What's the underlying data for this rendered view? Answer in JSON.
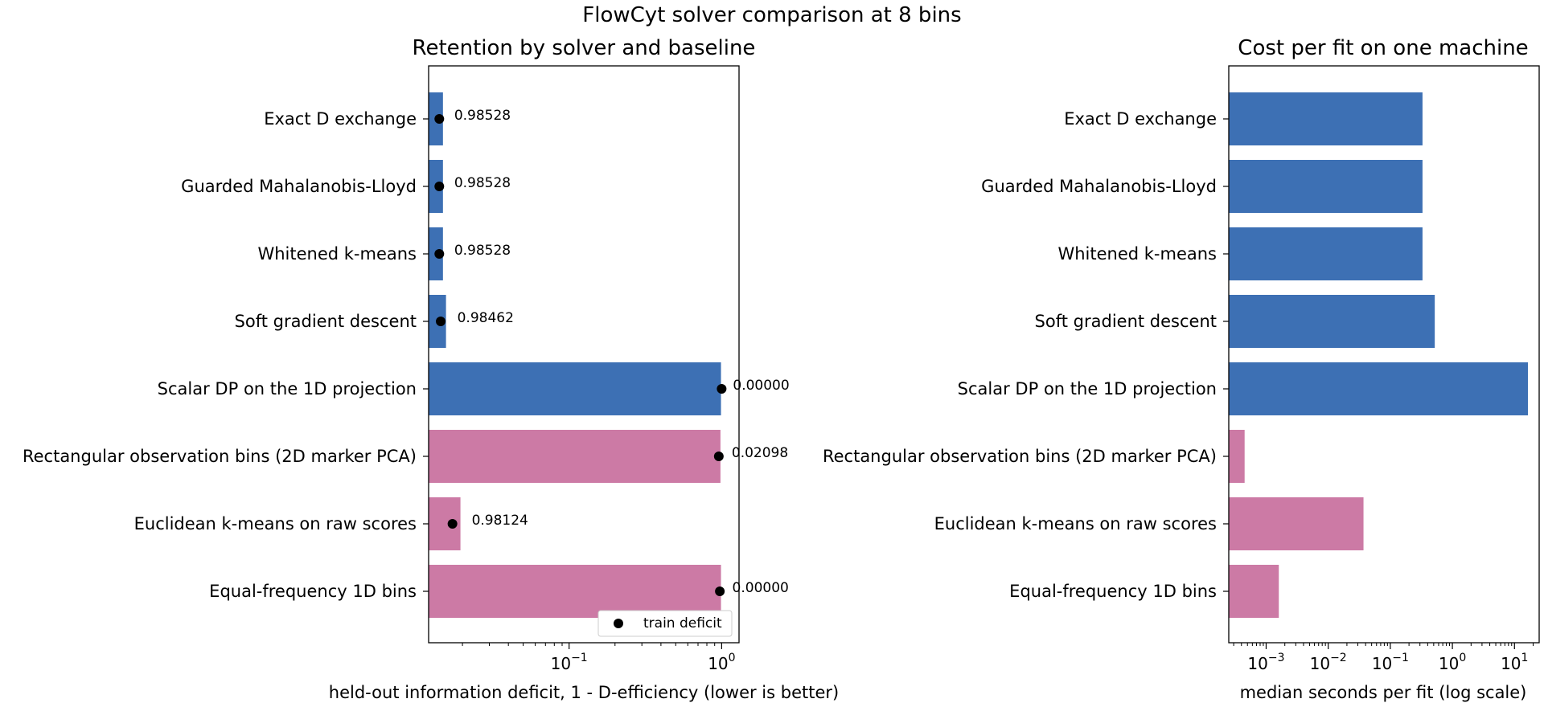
{
  "figure": {
    "suptitle": "FlowCyt solver comparison at 8 bins"
  },
  "colors": {
    "solver": "#3d70b4",
    "baseline": "#cc7aa5",
    "marker": "#000000"
  },
  "chart_data": [
    {
      "type": "bar",
      "orientation": "horizontal",
      "title": "Retention by solver and baseline",
      "xlabel": "held-out information deficit, 1 - D-efficiency (lower is better)",
      "ylabel": "",
      "xscale": "log",
      "xlim": [
        0.012,
        1.3
      ],
      "xticks": [
        {
          "value": 0.1,
          "base": "10",
          "exp": "−1"
        },
        {
          "value": 1,
          "base": "10",
          "exp": "0"
        }
      ],
      "categories": [
        "Exact D exchange",
        "Guarded Mahalanobis-Lloyd",
        "Whitened k-means",
        "Soft gradient descent",
        "Scalar DP on the 1D projection",
        "Rectangular observation bins (2D marker PCA)",
        "Euclidean k-means on raw scores",
        "Equal-frequency 1D bins"
      ],
      "groups": [
        "solver",
        "solver",
        "solver",
        "solver",
        "solver",
        "baseline",
        "baseline",
        "baseline"
      ],
      "values": [
        0.0149,
        0.0149,
        0.0149,
        0.0156,
        0.99,
        0.982,
        0.0194,
        0.99
      ],
      "train_deficit": [
        0.0141,
        0.0141,
        0.0141,
        0.0144,
        1.0,
        0.958,
        0.0172,
        0.973
      ],
      "data_labels": [
        "0.98528",
        "0.98528",
        "0.98528",
        "0.98462",
        "0.00000",
        "0.02098",
        "0.98124",
        "0.00000"
      ],
      "legend": {
        "label": "train deficit",
        "position": "lower right"
      }
    },
    {
      "type": "bar",
      "orientation": "horizontal",
      "title": "Cost per fit on one machine",
      "xlabel": "median seconds per fit (log scale)",
      "ylabel": "",
      "xscale": "log",
      "xlim": [
        0.00025,
        25
      ],
      "xticks": [
        {
          "value": 0.001,
          "base": "10",
          "exp": "−3"
        },
        {
          "value": 0.01,
          "base": "10",
          "exp": "−2"
        },
        {
          "value": 0.1,
          "base": "10",
          "exp": "−1"
        },
        {
          "value": 1,
          "base": "10",
          "exp": "0"
        },
        {
          "value": 10,
          "base": "10",
          "exp": "1"
        }
      ],
      "categories": [
        "Exact D exchange",
        "Guarded Mahalanobis-Lloyd",
        "Whitened k-means",
        "Soft gradient descent",
        "Scalar DP on the 1D projection",
        "Rectangular observation bins (2D marker PCA)",
        "Euclidean k-means on raw scores",
        "Equal-frequency 1D bins"
      ],
      "groups": [
        "solver",
        "solver",
        "solver",
        "solver",
        "solver",
        "baseline",
        "baseline",
        "baseline"
      ],
      "values": [
        0.33,
        0.33,
        0.33,
        0.52,
        16.5,
        0.00045,
        0.037,
        0.0016
      ]
    }
  ]
}
